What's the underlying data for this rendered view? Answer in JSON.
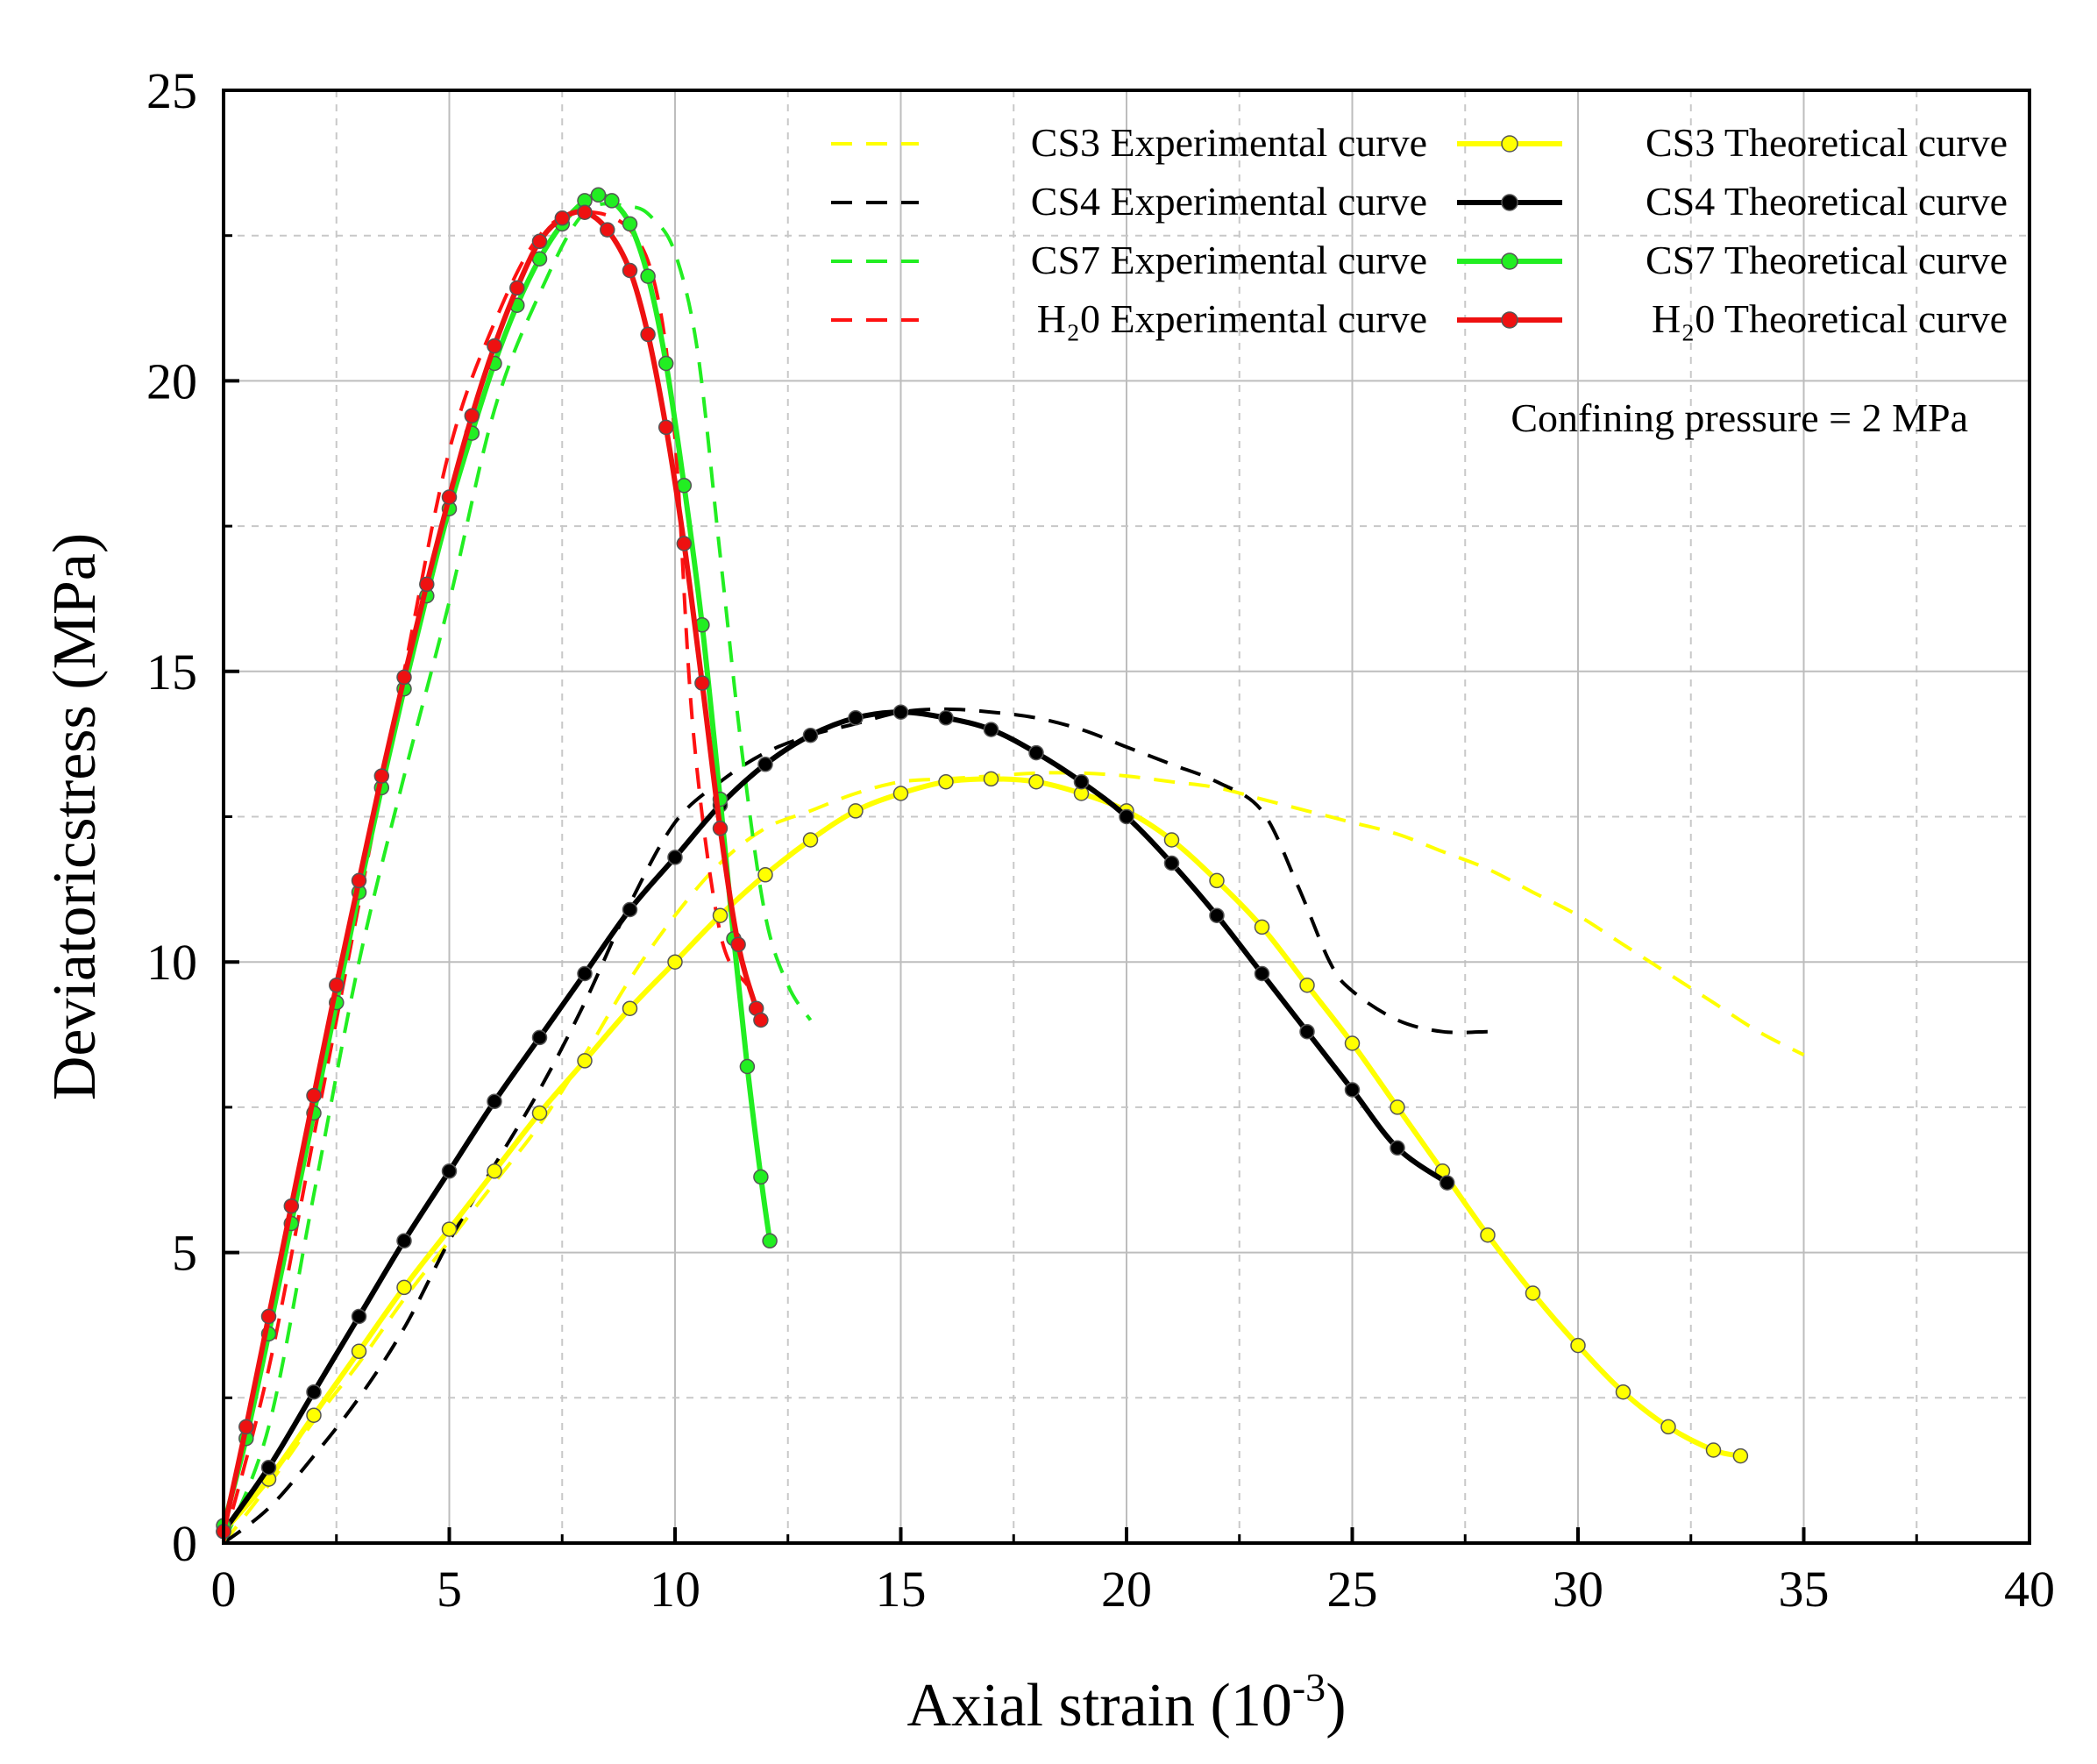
{
  "chart_data": {
    "type": "line",
    "title": "",
    "xlabel": "Axial strain (10",
    "xlabel_exp": "-3",
    "xlabel_close": ")",
    "ylabel": "Deviatoricstress (MPa)",
    "xlim": [
      0,
      40
    ],
    "ylim": [
      0,
      25
    ],
    "xticks": [
      0,
      5,
      10,
      15,
      20,
      25,
      30,
      35,
      40
    ],
    "yticks": [
      0,
      5,
      10,
      15,
      20,
      25
    ],
    "grid": true,
    "legend_position": "top-right",
    "annotation": "Confining pressure = 2 MPa",
    "series": [
      {
        "name": "CS3 Experimental curve",
        "kind": "experimental",
        "color": "#ffff00",
        "x": [
          0,
          1,
          2,
          3,
          4,
          5,
          6,
          7,
          8,
          9,
          10,
          11,
          12,
          13,
          14,
          15,
          16,
          17,
          18,
          19,
          20,
          21,
          22,
          23,
          24,
          25,
          26,
          27,
          28,
          29,
          30,
          31,
          32,
          33,
          34,
          35
        ],
        "y": [
          0,
          1.0,
          2.1,
          3.1,
          4.2,
          5.2,
          6.2,
          7.2,
          8.4,
          9.7,
          10.8,
          11.7,
          12.3,
          12.6,
          12.9,
          13.1,
          13.15,
          13.2,
          13.25,
          13.25,
          13.2,
          13.1,
          13.0,
          12.8,
          12.6,
          12.4,
          12.2,
          11.9,
          11.6,
          11.2,
          10.8,
          10.3,
          9.8,
          9.3,
          8.8,
          8.4
        ]
      },
      {
        "name": "CS4 Experimental curve",
        "kind": "experimental",
        "color": "#000000",
        "x": [
          0,
          1,
          2,
          3,
          4,
          5,
          6,
          7,
          8,
          9,
          10,
          11,
          12,
          13,
          14,
          15,
          16,
          17,
          18,
          19,
          20,
          21,
          22,
          23,
          23.8,
          24.5,
          25,
          26,
          27,
          28
        ],
        "y": [
          0,
          0.6,
          1.5,
          2.5,
          3.7,
          5.2,
          6.5,
          7.8,
          9.3,
          11.0,
          12.4,
          13.1,
          13.6,
          13.9,
          14.1,
          14.3,
          14.35,
          14.3,
          14.2,
          14.0,
          13.7,
          13.4,
          13.1,
          12.6,
          11.3,
          10.0,
          9.5,
          9.0,
          8.8,
          8.8
        ]
      },
      {
        "name": "CS7 Experimental curve",
        "kind": "experimental",
        "color": "#22ee22",
        "x": [
          0,
          1,
          2,
          3,
          4,
          5,
          6,
          7,
          8,
          9,
          9.5,
          10,
          10.5,
          11,
          11.5,
          12,
          12.5,
          13
        ],
        "y": [
          0,
          2.0,
          6.0,
          10.0,
          13.2,
          16.2,
          19.5,
          21.5,
          22.9,
          23.0,
          22.8,
          22.2,
          20.5,
          17.0,
          13.5,
          10.8,
          9.6,
          9.0
        ]
      },
      {
        "name": "H₂0 Experimental curve",
        "kind": "experimental",
        "color": "#ff1111",
        "x": [
          0,
          1,
          2,
          3,
          4,
          5,
          6,
          7,
          8,
          9,
          9.6,
          10,
          10.4,
          11,
          11.6
        ],
        "y": [
          0,
          3.0,
          7.0,
          11.0,
          15.0,
          18.8,
          21.0,
          22.5,
          22.9,
          22.6,
          21.5,
          19.0,
          14.0,
          10.5,
          9.6
        ]
      },
      {
        "name": "CS3 Theoretical curve",
        "kind": "theoretical",
        "color": "#ffff00",
        "x": [
          0,
          1,
          2,
          3,
          4,
          5,
          6,
          7,
          8,
          9,
          10,
          11,
          12,
          13,
          14,
          15,
          16,
          17,
          18,
          19,
          20,
          21,
          22,
          23,
          24,
          25,
          26,
          27,
          28,
          29,
          30,
          31,
          32,
          33,
          33.6
        ],
        "y": [
          0.2,
          1.1,
          2.2,
          3.3,
          4.4,
          5.4,
          6.4,
          7.4,
          8.3,
          9.2,
          10.0,
          10.8,
          11.5,
          12.1,
          12.6,
          12.9,
          13.1,
          13.15,
          13.1,
          12.9,
          12.6,
          12.1,
          11.4,
          10.6,
          9.6,
          8.6,
          7.5,
          6.4,
          5.3,
          4.3,
          3.4,
          2.6,
          2.0,
          1.6,
          1.5
        ]
      },
      {
        "name": "CS4 Theoretical curve",
        "kind": "theoretical",
        "color": "#000000",
        "x": [
          0,
          1,
          2,
          3,
          4,
          5,
          6,
          7,
          8,
          9,
          10,
          11,
          12,
          13,
          14,
          15,
          16,
          17,
          18,
          19,
          20,
          21,
          22,
          23,
          24,
          25,
          26,
          27.1
        ],
        "y": [
          0.2,
          1.3,
          2.6,
          3.9,
          5.2,
          6.4,
          7.6,
          8.7,
          9.8,
          10.9,
          11.8,
          12.7,
          13.4,
          13.9,
          14.2,
          14.3,
          14.2,
          14.0,
          13.6,
          13.1,
          12.5,
          11.7,
          10.8,
          9.8,
          8.8,
          7.8,
          6.8,
          6.2
        ]
      },
      {
        "name": "CS7 Theoretical curve",
        "kind": "theoretical",
        "color": "#22ee22",
        "x": [
          0,
          0.5,
          1,
          1.5,
          2,
          2.5,
          3,
          3.5,
          4,
          4.5,
          5,
          5.5,
          6,
          6.5,
          7,
          7.5,
          8,
          8.3,
          8.6,
          9,
          9.4,
          9.8,
          10.2,
          10.6,
          11,
          11.3,
          11.6,
          11.9,
          12.1
        ],
        "y": [
          0.3,
          1.8,
          3.6,
          5.5,
          7.4,
          9.3,
          11.2,
          13.0,
          14.7,
          16.3,
          17.8,
          19.1,
          20.3,
          21.3,
          22.1,
          22.7,
          23.1,
          23.2,
          23.1,
          22.7,
          21.8,
          20.3,
          18.2,
          15.8,
          12.8,
          10.4,
          8.2,
          6.3,
          5.2
        ]
      },
      {
        "name": "H₂0 Theoretical curve",
        "kind": "theoretical",
        "color": "#ee1111",
        "x": [
          0,
          0.5,
          1,
          1.5,
          2,
          2.5,
          3,
          3.5,
          4,
          4.5,
          5,
          5.5,
          6,
          6.5,
          7,
          7.5,
          8,
          8.5,
          9,
          9.4,
          9.8,
          10.2,
          10.6,
          11,
          11.4,
          11.8,
          11.9
        ],
        "y": [
          0.2,
          2.0,
          3.9,
          5.8,
          7.7,
          9.6,
          11.4,
          13.2,
          14.9,
          16.5,
          18.0,
          19.4,
          20.6,
          21.6,
          22.4,
          22.8,
          22.9,
          22.6,
          21.9,
          20.8,
          19.2,
          17.2,
          14.8,
          12.3,
          10.3,
          9.2,
          9.0
        ]
      }
    ]
  }
}
